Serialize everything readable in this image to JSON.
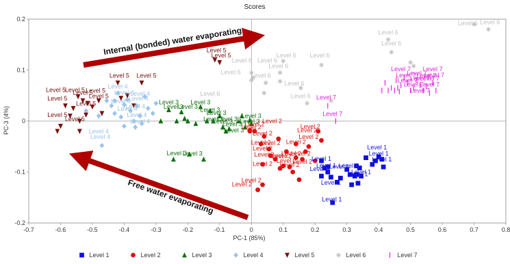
{
  "chart_data": {
    "type": "scatter",
    "title": "Scores",
    "xlabel": "PC-1 (85%)",
    "ylabel": "PC-3 (4%)",
    "xlim": [
      -0.7,
      0.8
    ],
    "ylim": [
      -0.2,
      0.2
    ],
    "xticks": [
      "-0.7",
      "-0.6",
      "-0.5",
      "-0.4",
      "-0.3",
      "-0.2",
      "-0.1",
      "0",
      "0.1",
      "0.2",
      "0.3",
      "0.4",
      "0.5",
      "0.6",
      "0.7",
      "0.8"
    ],
    "yticks": [
      "-0.2",
      "-0.1",
      "0",
      "0.1",
      "0.2"
    ],
    "grid": false,
    "zero_lines": true,
    "legend_position": "bottom",
    "annotations": [
      {
        "text": "Internal (bonded) water evaporating"
      },
      {
        "text": "Free water evaporating"
      }
    ],
    "series": [
      {
        "name": "Level 1",
        "marker": "square",
        "color": "#1010e0",
        "points": [
          [
            0.22,
            -0.078
          ],
          [
            0.23,
            -0.092
          ],
          [
            0.24,
            -0.1
          ],
          [
            0.25,
            -0.11
          ],
          [
            0.255,
            -0.16
          ],
          [
            0.27,
            -0.12
          ],
          [
            0.28,
            -0.112
          ],
          [
            0.3,
            -0.095
          ],
          [
            0.31,
            -0.105
          ],
          [
            0.315,
            -0.125
          ],
          [
            0.325,
            -0.108
          ],
          [
            0.33,
            -0.088
          ],
          [
            0.335,
            -0.122
          ],
          [
            0.34,
            -0.092
          ],
          [
            0.345,
            -0.108
          ],
          [
            0.36,
            -0.072
          ],
          [
            0.38,
            -0.085
          ],
          [
            0.39,
            -0.078
          ],
          [
            0.4,
            -0.07
          ],
          [
            0.41,
            -0.075
          ],
          [
            0.415,
            -0.09
          ],
          [
            0.22,
            -0.108
          ],
          [
            0.24,
            -0.09
          ],
          [
            0.33,
            -0.105
          ]
        ],
        "labels": [
          [
            0.22,
            -0.078
          ],
          [
            0.215,
            -0.098
          ],
          [
            0.25,
            -0.125
          ],
          [
            0.253,
            -0.158
          ],
          [
            0.275,
            -0.093
          ],
          [
            0.305,
            -0.092
          ],
          [
            0.335,
            -0.108
          ],
          [
            0.345,
            -0.104
          ],
          [
            0.395,
            -0.056
          ],
          [
            0.4,
            -0.068
          ],
          [
            0.41,
            -0.079
          ],
          [
            0.235,
            -0.091
          ]
        ]
      },
      {
        "name": "Level 2",
        "marker": "circle",
        "color": "#e01010",
        "points": [
          [
            -0.005,
            -0.018
          ],
          [
            0.01,
            -0.02
          ],
          [
            0.03,
            -0.045
          ],
          [
            0.035,
            -0.085
          ],
          [
            0.035,
            -0.125
          ],
          [
            0.04,
            -0.03
          ],
          [
            0.055,
            -0.055
          ],
          [
            0.075,
            -0.075
          ],
          [
            0.085,
            -0.035
          ],
          [
            0.09,
            -0.093
          ],
          [
            0.1,
            -0.088
          ],
          [
            0.11,
            -0.06
          ],
          [
            0.12,
            -0.09
          ],
          [
            0.13,
            -0.1
          ],
          [
            0.14,
            -0.072
          ],
          [
            0.14,
            -0.045
          ],
          [
            0.15,
            -0.115
          ],
          [
            0.16,
            -0.075
          ],
          [
            0.17,
            -0.06
          ],
          [
            0.18,
            -0.05
          ],
          [
            0.2,
            -0.078
          ],
          [
            0.21,
            -0.02
          ],
          [
            0.22,
            -0.038
          ],
          [
            0.02,
            -0.135
          ],
          [
            -0.005,
            -0.02
          ],
          [
            0.06,
            -0.068
          ]
        ],
        "labels": [
          [
            0.01,
            -0.01
          ],
          [
            0.0,
            -0.016
          ],
          [
            0.035,
            -0.028
          ],
          [
            0.065,
            -0.004
          ],
          [
            0.185,
            -0.015
          ],
          [
            0.175,
            -0.022
          ],
          [
            0.03,
            -0.046
          ],
          [
            0.035,
            -0.058
          ],
          [
            0.04,
            -0.07
          ],
          [
            0.06,
            -0.047
          ],
          [
            0.085,
            -0.072
          ],
          [
            0.11,
            -0.082
          ],
          [
            0.125,
            -0.068
          ],
          [
            0.14,
            -0.045
          ],
          [
            0.16,
            -0.084
          ],
          [
            0.18,
            -0.035
          ],
          [
            0.155,
            -0.068
          ],
          [
            0.12,
            -0.09
          ],
          [
            0.095,
            -0.073
          ],
          [
            0.035,
            -0.088
          ],
          [
            0.0,
            -0.12
          ],
          [
            -0.03,
            -0.128
          ]
        ]
      },
      {
        "name": "Level 3",
        "marker": "triangle",
        "color": "#107010",
        "points": [
          [
            -0.285,
            0.0
          ],
          [
            -0.26,
            0.022
          ],
          [
            -0.245,
            -0.075
          ],
          [
            -0.235,
            0.0
          ],
          [
            -0.22,
            0.018
          ],
          [
            -0.21,
            0.005
          ],
          [
            -0.2,
            0.0
          ],
          [
            -0.195,
            -0.065
          ],
          [
            -0.175,
            -0.005
          ],
          [
            -0.16,
            0.028
          ],
          [
            -0.15,
            -0.075
          ],
          [
            -0.14,
            0.0
          ],
          [
            -0.13,
            0.02
          ],
          [
            -0.12,
            0.0
          ],
          [
            -0.1,
            0.01
          ],
          [
            -0.09,
            -0.012
          ],
          [
            -0.08,
            -0.02
          ],
          [
            -0.07,
            -0.015
          ],
          [
            -0.04,
            0.0
          ],
          [
            -0.03,
            0.01
          ],
          [
            -0.02,
            -0.012
          ],
          [
            0.0,
            -0.005
          ],
          [
            -0.005,
            0.002
          ]
        ],
        "labels": [
          [
            -0.26,
            0.033
          ],
          [
            -0.245,
            0.024
          ],
          [
            -0.2,
            0.024
          ],
          [
            -0.16,
            0.033
          ],
          [
            -0.13,
            0.018
          ],
          [
            -0.11,
            0.012
          ],
          [
            -0.12,
            0.0
          ],
          [
            -0.075,
            0.0
          ],
          [
            -0.055,
            -0.022
          ],
          [
            -0.06,
            -0.01
          ],
          [
            -0.09,
            -0.005
          ],
          [
            0.0,
            0.006
          ],
          [
            -0.005,
            -0.005
          ],
          [
            -0.235,
            -0.067
          ],
          [
            -0.185,
            -0.068
          ]
        ]
      },
      {
        "name": "Level 4",
        "marker": "diamond",
        "color": "#9cc3e8",
        "points": [
          [
            -0.52,
            0.02
          ],
          [
            -0.48,
            0.01
          ],
          [
            -0.47,
            -0.048
          ],
          [
            -0.455,
            0.04
          ],
          [
            -0.44,
            0.03
          ],
          [
            -0.43,
            0.015
          ],
          [
            -0.42,
            0.055
          ],
          [
            -0.41,
            0.008
          ],
          [
            -0.4,
            -0.01
          ],
          [
            -0.39,
            0.042
          ],
          [
            -0.38,
            0.02
          ],
          [
            -0.37,
            0.0
          ],
          [
            -0.365,
            -0.012
          ],
          [
            -0.36,
            0.03
          ],
          [
            -0.35,
            0.01
          ],
          [
            -0.345,
            -0.005
          ],
          [
            -0.335,
            0.048
          ],
          [
            -0.325,
            0.025
          ],
          [
            -0.31,
            0.015
          ],
          [
            -0.3,
            0.035
          ],
          [
            -0.43,
            0.04
          ],
          [
            -0.4,
            0.032
          ]
        ],
        "labels": [
          [
            -0.42,
            0.064
          ],
          [
            -0.4,
            0.052
          ],
          [
            -0.35,
            0.05
          ],
          [
            -0.355,
            0.04
          ],
          [
            -0.41,
            0.035
          ],
          [
            -0.365,
            0.025
          ],
          [
            -0.39,
            0.02
          ],
          [
            -0.36,
            0.008
          ],
          [
            -0.35,
            -0.005
          ],
          [
            -0.48,
            -0.024
          ],
          [
            -0.475,
            -0.035
          ]
        ]
      },
      {
        "name": "Level 5",
        "marker": "triangle-down",
        "color": "#7a1010",
        "points": [
          [
            -0.61,
            -0.02
          ],
          [
            -0.6,
            -0.01
          ],
          [
            -0.585,
            0.03
          ],
          [
            -0.57,
            0.01
          ],
          [
            -0.56,
            0.025
          ],
          [
            -0.545,
            0.048
          ],
          [
            -0.54,
            -0.02
          ],
          [
            -0.53,
            0.04
          ],
          [
            -0.52,
            0.012
          ],
          [
            -0.515,
            0.035
          ],
          [
            -0.5,
            0.028
          ],
          [
            -0.48,
            0.04
          ],
          [
            -0.47,
            0.015
          ],
          [
            -0.42,
            0.075
          ],
          [
            -0.41,
            0.045
          ],
          [
            -0.39,
            0.05
          ],
          [
            -0.37,
            0.03
          ],
          [
            -0.345,
            0.075
          ],
          [
            -0.115,
            0.12
          ],
          [
            -0.1,
            0.115
          ],
          [
            -0.54,
            0.0
          ]
        ],
        "labels": [
          [
            -0.615,
            0.057
          ],
          [
            -0.61,
            0.04
          ],
          [
            -0.61,
            0.008
          ],
          [
            -0.555,
            0.0
          ],
          [
            -0.555,
            0.057
          ],
          [
            -0.53,
            0.052
          ],
          [
            -0.52,
            0.03
          ],
          [
            -0.49,
            0.056
          ],
          [
            -0.48,
            0.045
          ],
          [
            -0.415,
            0.085
          ],
          [
            -0.33,
            0.085
          ],
          [
            -0.11,
            0.135
          ],
          [
            -0.095,
            0.125
          ]
        ]
      },
      {
        "name": "Level 6",
        "marker": "star",
        "color": "#c0c0c0",
        "points": [
          [
            0.0,
            0.095
          ],
          [
            0.005,
            0.085
          ],
          [
            0.04,
            0.055
          ],
          [
            0.045,
            0.075
          ],
          [
            0.09,
            0.078
          ],
          [
            0.09,
            0.095
          ],
          [
            0.1,
            0.118
          ],
          [
            0.155,
            0.065
          ],
          [
            0.175,
            0.035
          ],
          [
            0.22,
            0.11
          ],
          [
            0.25,
            0.04
          ],
          [
            0.43,
            0.16
          ],
          [
            0.44,
            0.135
          ],
          [
            0.5,
            0.115
          ],
          [
            0.51,
            0.108
          ],
          [
            0.7,
            0.19
          ],
          [
            0.745,
            0.18
          ],
          [
            -0.04,
            0.005
          ],
          [
            0.0,
            0.08
          ]
        ],
        "labels": [
          [
            -0.065,
            0.092
          ],
          [
            -0.03,
            0.115
          ],
          [
            0.03,
            0.085
          ],
          [
            0.05,
            0.115
          ],
          [
            0.11,
            0.125
          ],
          [
            0.085,
            0.104
          ],
          [
            0.135,
            0.07
          ],
          [
            0.155,
            0.045
          ],
          [
            0.215,
            0.125
          ],
          [
            0.43,
            0.17
          ],
          [
            0.44,
            0.148
          ],
          [
            0.68,
            0.188
          ],
          [
            0.75,
            0.19
          ],
          [
            -0.13,
            0.05
          ]
        ]
      },
      {
        "name": "Level 7",
        "marker": "tick",
        "color": "#e020e0",
        "points": [
          [
            0.24,
            0.03
          ],
          [
            0.265,
            0.0
          ],
          [
            0.41,
            0.06
          ],
          [
            0.42,
            0.075
          ],
          [
            0.43,
            0.06
          ],
          [
            0.44,
            0.065
          ],
          [
            0.45,
            0.06
          ],
          [
            0.455,
            0.08
          ],
          [
            0.46,
            0.065
          ],
          [
            0.465,
            0.058
          ],
          [
            0.47,
            0.07
          ],
          [
            0.48,
            0.085
          ],
          [
            0.49,
            0.075
          ],
          [
            0.5,
            0.06
          ],
          [
            0.51,
            0.065
          ],
          [
            0.52,
            0.08
          ],
          [
            0.53,
            0.07
          ],
          [
            0.54,
            0.06
          ],
          [
            0.55,
            0.068
          ],
          [
            0.56,
            0.055
          ],
          [
            0.57,
            0.075
          ],
          [
            0.58,
            0.06
          ]
        ],
        "labels": [
          [
            0.235,
            0.042
          ],
          [
            0.255,
            0.01
          ],
          [
            0.47,
            0.098
          ],
          [
            0.485,
            0.086
          ],
          [
            0.49,
            0.076
          ],
          [
            0.51,
            0.068
          ],
          [
            0.52,
            0.09
          ],
          [
            0.53,
            0.08
          ],
          [
            0.53,
            0.056
          ],
          [
            0.55,
            0.085
          ],
          [
            0.56,
            0.08
          ],
          [
            0.56,
            0.068
          ],
          [
            0.57,
            0.098
          ],
          [
            0.575,
            0.086
          ]
        ]
      }
    ]
  }
}
